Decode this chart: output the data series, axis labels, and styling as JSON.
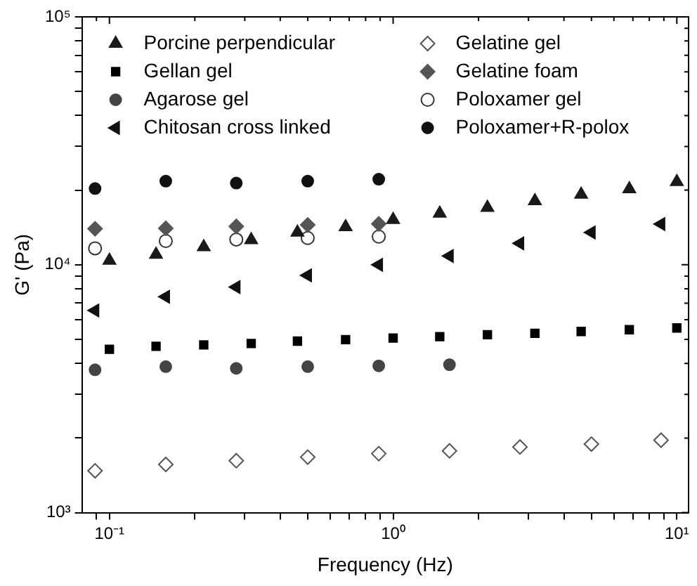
{
  "chart_data": {
    "type": "scatter",
    "xlabel": "Frequency (Hz)",
    "ylabel": "G' (Pa)",
    "log": "xy",
    "xlim": [
      0.08,
      11
    ],
    "ylim": [
      1000,
      100000
    ],
    "xticks": [
      {
        "value": 0.09,
        "label": null
      },
      {
        "value": 0.1,
        "label": "10⁻¹"
      },
      {
        "value": 0.2,
        "label": null
      },
      {
        "value": 0.3,
        "label": null
      },
      {
        "value": 0.4,
        "label": null
      },
      {
        "value": 0.5,
        "label": null
      },
      {
        "value": 0.6,
        "label": null
      },
      {
        "value": 0.7,
        "label": null
      },
      {
        "value": 0.8,
        "label": null
      },
      {
        "value": 0.9,
        "label": null
      },
      {
        "value": 1,
        "label": "10⁰"
      },
      {
        "value": 2,
        "label": null
      },
      {
        "value": 3,
        "label": null
      },
      {
        "value": 4,
        "label": null
      },
      {
        "value": 5,
        "label": null
      },
      {
        "value": 6,
        "label": null
      },
      {
        "value": 7,
        "label": null
      },
      {
        "value": 8,
        "label": null
      },
      {
        "value": 9,
        "label": null
      },
      {
        "value": 10,
        "label": "10¹"
      }
    ],
    "yticks": [
      {
        "value": 1000,
        "label": "10³"
      },
      {
        "value": 2000,
        "label": null
      },
      {
        "value": 3000,
        "label": null
      },
      {
        "value": 4000,
        "label": null
      },
      {
        "value": 5000,
        "label": null
      },
      {
        "value": 6000,
        "label": null
      },
      {
        "value": 7000,
        "label": null
      },
      {
        "value": 8000,
        "label": null
      },
      {
        "value": 9000,
        "label": null
      },
      {
        "value": 10000,
        "label": "10⁴"
      },
      {
        "value": 20000,
        "label": null
      },
      {
        "value": 30000,
        "label": null
      },
      {
        "value": 40000,
        "label": null
      },
      {
        "value": 50000,
        "label": null
      },
      {
        "value": 60000,
        "label": null
      },
      {
        "value": 70000,
        "label": null
      },
      {
        "value": 80000,
        "label": null
      },
      {
        "value": 90000,
        "label": null
      },
      {
        "value": 100000,
        "label": "10⁵"
      }
    ],
    "grid": false,
    "legend": "top left",
    "series": [
      {
        "name": "Porcine perpendicular",
        "color": "#1a1a1a",
        "marker": "triangle",
        "x": [
          0.1,
          0.146,
          0.215,
          0.316,
          0.46,
          0.68,
          1.0,
          1.46,
          2.15,
          3.16,
          4.6,
          6.8,
          10
        ],
        "values": [
          10400,
          11000,
          11800,
          12600,
          13500,
          14200,
          15200,
          16100,
          17000,
          18100,
          19200,
          20200,
          21600
        ]
      },
      {
        "name": "Gellan gel",
        "color": "#000000",
        "marker": "square",
        "x": [
          0.1,
          0.146,
          0.215,
          0.316,
          0.46,
          0.68,
          1.0,
          1.46,
          2.15,
          3.16,
          4.6,
          6.8,
          10
        ],
        "values": [
          4560,
          4690,
          4750,
          4810,
          4920,
          4990,
          5060,
          5130,
          5220,
          5290,
          5380,
          5470,
          5560
        ]
      },
      {
        "name": "Agarose gel",
        "color": "#444444",
        "marker": "circle",
        "x": [
          0.089,
          0.158,
          0.28,
          0.5,
          0.89,
          1.58
        ],
        "values": [
          3770,
          3880,
          3820,
          3880,
          3910,
          3950
        ]
      },
      {
        "name": "Chitosan cross linked",
        "color": "#111111",
        "marker": "triangle-left",
        "x": [
          0.089,
          0.158,
          0.28,
          0.5,
          0.89,
          1.58,
          2.8,
          5.0,
          8.8
        ],
        "values": [
          6540,
          7430,
          8130,
          9060,
          10000,
          10850,
          12200,
          13500,
          14600
        ]
      },
      {
        "name": "Gelatine gel",
        "color": "#555555",
        "marker": "diamond-open",
        "x": [
          0.089,
          0.158,
          0.28,
          0.5,
          0.89,
          1.58,
          2.8,
          5.0,
          8.8
        ],
        "values": [
          1475,
          1565,
          1620,
          1675,
          1730,
          1775,
          1840,
          1890,
          1960
        ]
      },
      {
        "name": "Gelatine foam",
        "color": "#555555",
        "marker": "diamond",
        "x": [
          0.089,
          0.158,
          0.28,
          0.5,
          0.89
        ],
        "values": [
          13970,
          14030,
          14280,
          14480,
          14620
        ]
      },
      {
        "name": "Poloxamer gel",
        "color": "#333333",
        "marker": "circle-open",
        "x": [
          0.089,
          0.158,
          0.28,
          0.5,
          0.89
        ],
        "values": [
          11650,
          12470,
          12640,
          12820,
          12990
        ]
      },
      {
        "name": "Poloxamer+R-polox",
        "color": "#111111",
        "marker": "circle",
        "x": [
          0.089,
          0.158,
          0.28,
          0.5,
          0.89
        ],
        "values": [
          20300,
          21740,
          21350,
          21740,
          22140
        ]
      }
    ]
  }
}
